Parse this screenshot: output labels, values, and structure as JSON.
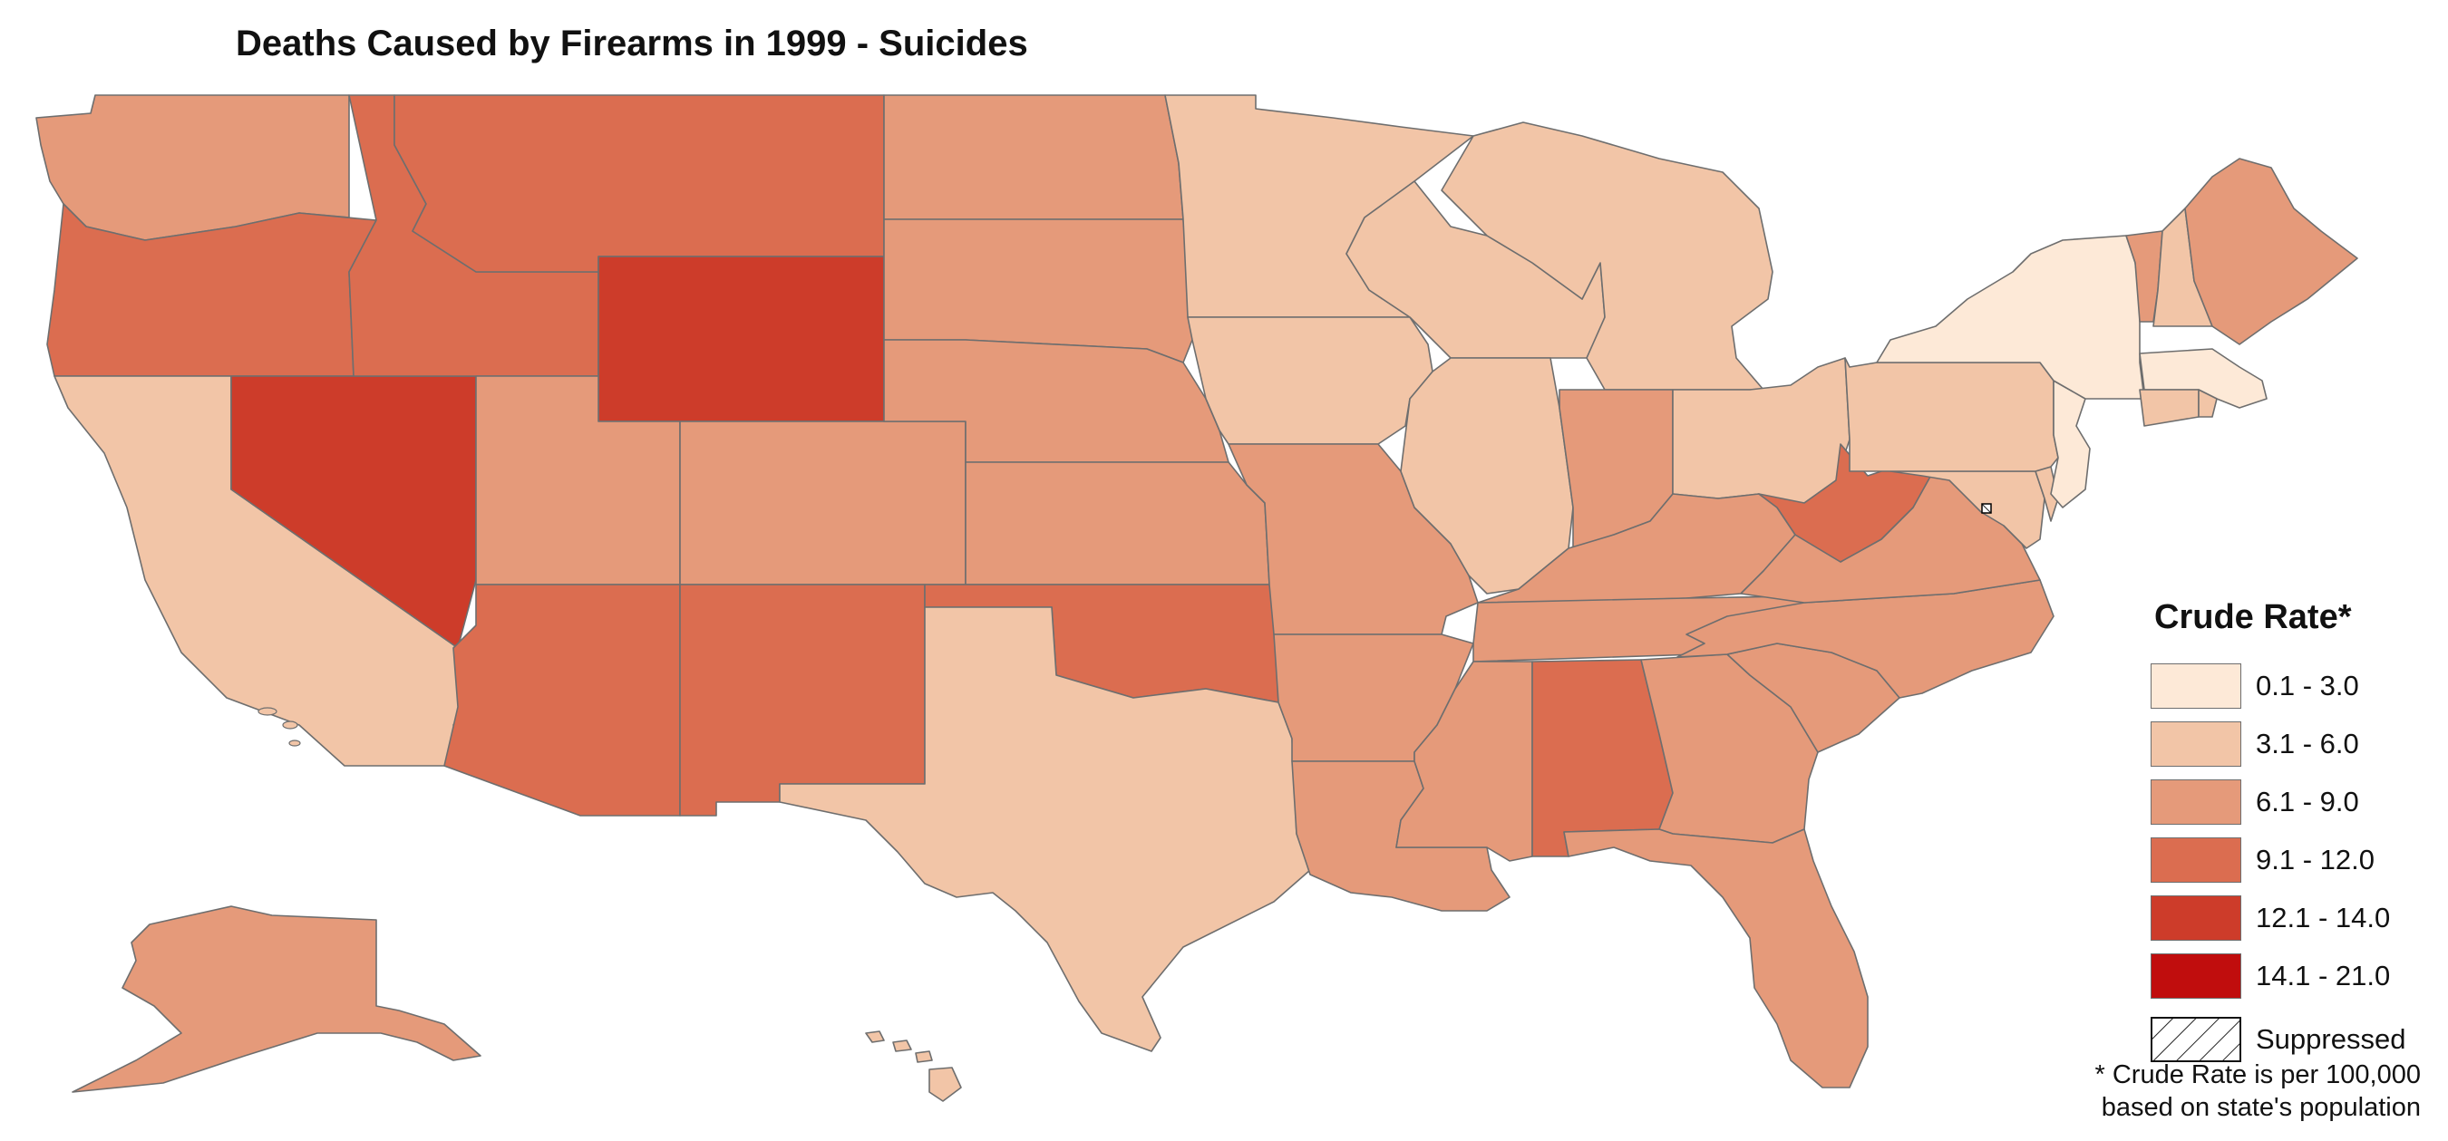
{
  "title": "Deaths Caused by Firearms in 1999 - Suicides",
  "legend": {
    "title": "Crude Rate*",
    "classes": [
      {
        "label": "0.1 - 3.0",
        "color": "#fde9d7"
      },
      {
        "label": "3.1 - 6.0",
        "color": "#f2c5a7"
      },
      {
        "label": "6.1 - 9.0",
        "color": "#e59a7a"
      },
      {
        "label": "9.1 - 12.0",
        "color": "#db6d50"
      },
      {
        "label": "12.1 - 14.0",
        "color": "#cd3c2a"
      },
      {
        "label": "14.1 - 21.0",
        "color": "#c00d0d"
      }
    ],
    "suppressed_label": "Suppressed"
  },
  "footnote": {
    "line1": "* Crude Rate is per 100,000",
    "line2": "based on state's population"
  },
  "state_classes": {
    "washington": 2,
    "oregon": 3,
    "california": 1,
    "nevada": 4,
    "idaho": 3,
    "montana": 3,
    "wyoming": 4,
    "utah": 2,
    "arizona": 3,
    "colorado": 2,
    "new-mexico": 3,
    "north-dakota": 2,
    "south-dakota": 2,
    "nebraska": 2,
    "kansas": 2,
    "oklahoma": 3,
    "texas": 1,
    "minnesota": 1,
    "iowa": 1,
    "missouri": 2,
    "arkansas": 2,
    "louisiana": 2,
    "wisconsin": 1,
    "illinois": 1,
    "michigan": 1,
    "indiana": 2,
    "ohio": 1,
    "kentucky": 2,
    "tennessee": 2,
    "mississippi": 2,
    "alabama": 3,
    "georgia": 2,
    "florida": 2,
    "south-carolina": 2,
    "north-carolina": 2,
    "virginia": 2,
    "west-virginia": 3,
    "maryland": 1,
    "delaware": 1,
    "new-jersey": 0,
    "pennsylvania": 1,
    "new-york": 0,
    "connecticut": 1,
    "rhode-island": 1,
    "massachusetts": 0,
    "vermont": 2,
    "new-hampshire": 1,
    "maine": 2,
    "alaska": 2,
    "hawaii": 1
  }
}
